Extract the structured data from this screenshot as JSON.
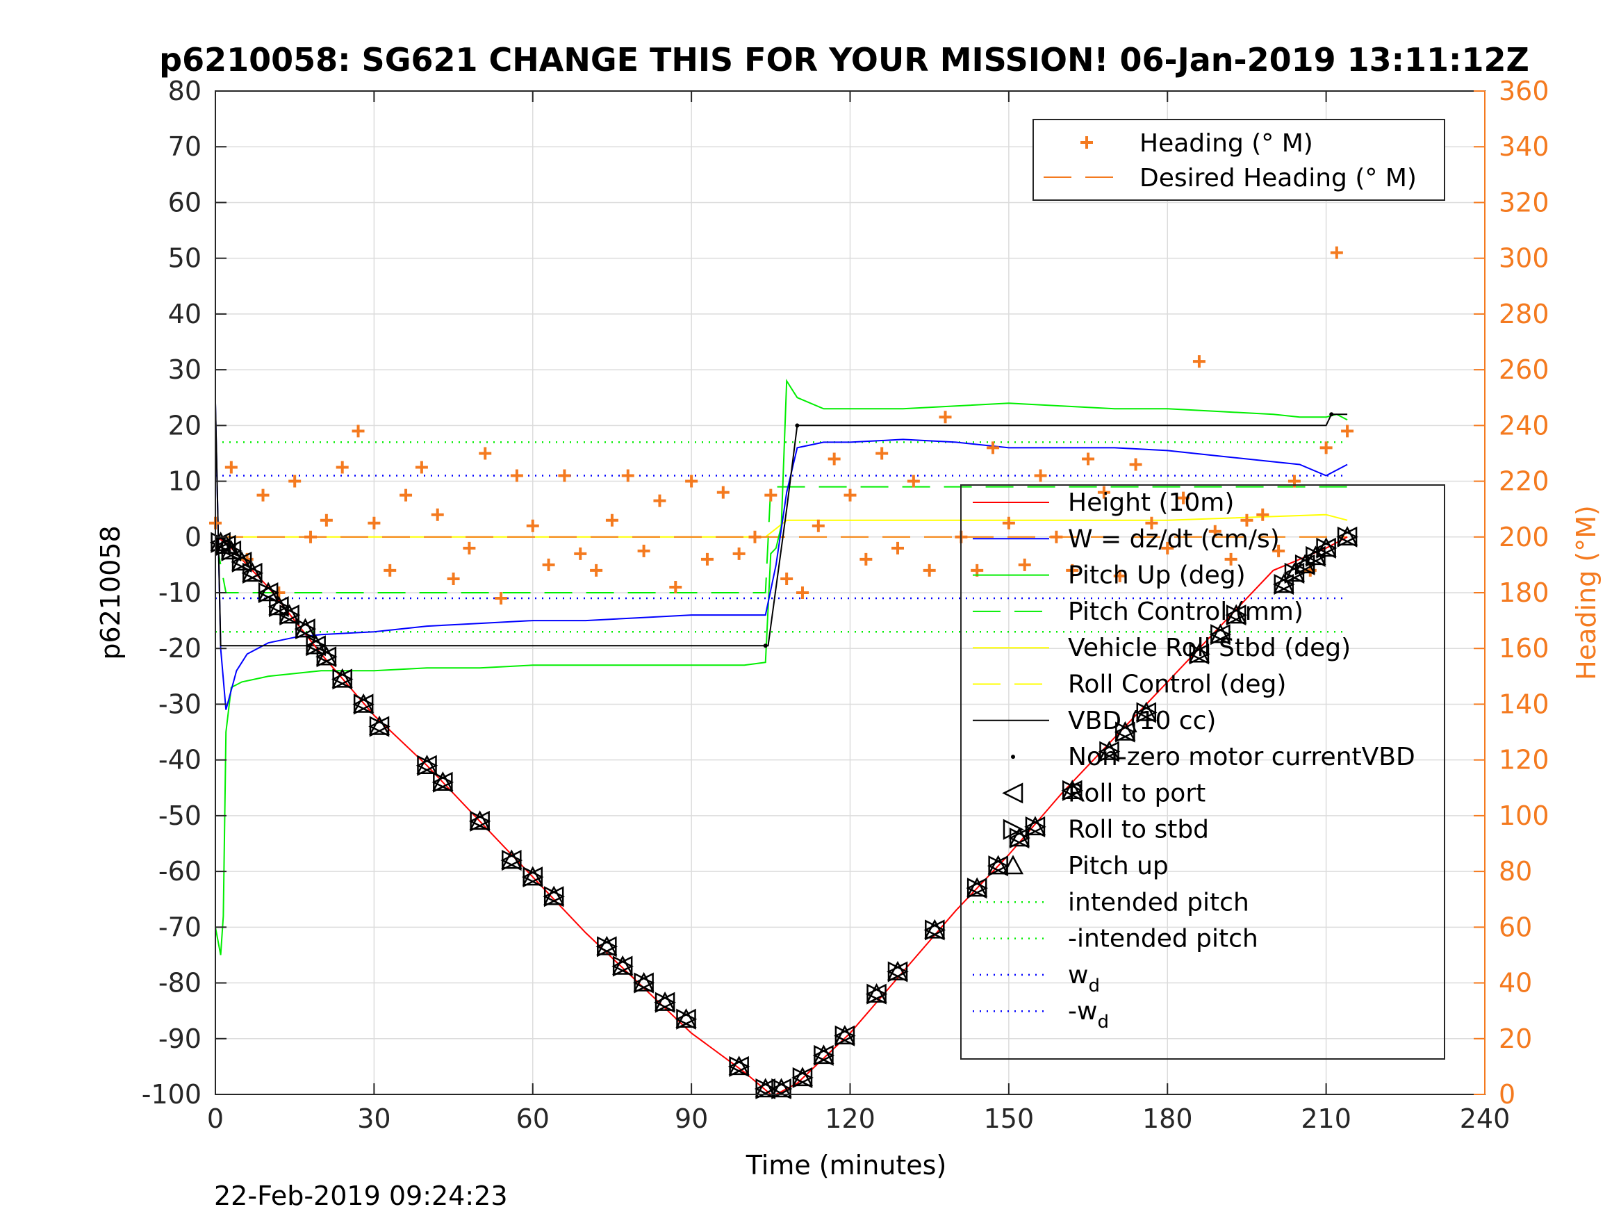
{
  "chart_data": {
    "type": "line",
    "title": "p6210058: SG621 CHANGE THIS FOR YOUR MISSION! 06-Jan-2019 13:11:12Z",
    "xlabel": "Time (minutes)",
    "ylabel": "p6210058",
    "y2label": "Heading (°M)",
    "footer": "22-Feb-2019 09:24:23",
    "xlim": [
      0,
      240
    ],
    "ylim": [
      -100,
      80
    ],
    "y2lim": [
      0,
      360
    ],
    "x_ticks": [
      "0",
      "30",
      "60",
      "90",
      "120",
      "150",
      "180",
      "210",
      "240"
    ],
    "y_ticks": [
      "80",
      "70",
      "60",
      "50",
      "40",
      "30",
      "20",
      "10",
      "0",
      "-10",
      "-20",
      "-30",
      "-40",
      "-50",
      "-60",
      "-70",
      "-80",
      "-90",
      "-100"
    ],
    "y2_ticks": [
      "360",
      "340",
      "320",
      "300",
      "280",
      "260",
      "240",
      "220",
      "200",
      "180",
      "160",
      "140",
      "120",
      "100",
      "80",
      "60",
      "40",
      "20",
      "0"
    ],
    "grid": true,
    "colors": {
      "heading": "#f47a1f",
      "height": "#ff0000",
      "w": "#0000ff",
      "pitch": "#00ee00",
      "roll": "#ffff00",
      "vbd": "#000000"
    },
    "legend_heading": {
      "placement": "top-right",
      "entries": [
        "Heading (° M)",
        "Desired Heading (° M)"
      ]
    },
    "legend_main": {
      "placement": "right",
      "entries": [
        "Height (10m)",
        "W = dz/dt (cm/s)",
        "Pitch Up (deg)",
        "Pitch Control (mm)",
        "Vehicle Roll Stbd (deg)",
        "Roll Control (deg)",
        "VBD (10 cc)",
        "Non-zero motor currentVBD",
        "Roll to port",
        "Roll to stbd",
        "Pitch up",
        "intended pitch",
        "-intended pitch",
        "w",
        "-w"
      ],
      "subscript": "d"
    },
    "series": [
      {
        "name": "Height (10m)",
        "x": [
          0,
          2,
          5,
          10,
          20,
          30,
          40,
          50,
          60,
          70,
          80,
          90,
          100,
          105,
          106,
          108,
          110,
          120,
          130,
          140,
          150,
          160,
          170,
          180,
          190,
          200,
          205,
          210,
          214
        ],
        "y": [
          0,
          -1,
          -4,
          -9,
          -21,
          -32,
          -41,
          -51,
          -61,
          -71,
          -80,
          -89,
          -96,
          -100,
          -100,
          -99,
          -98,
          -89,
          -78,
          -67,
          -57,
          -46,
          -36,
          -26,
          -16,
          -6,
          -4,
          -2,
          0
        ]
      },
      {
        "name": "W = dz/dt (cm/s)",
        "x": [
          0,
          1,
          2,
          4,
          6,
          10,
          15,
          20,
          30,
          40,
          50,
          60,
          70,
          80,
          90,
          100,
          104,
          106,
          108,
          110,
          115,
          120,
          130,
          140,
          150,
          160,
          170,
          180,
          190,
          200,
          205,
          210,
          214
        ],
        "y": [
          24,
          -20,
          -31,
          -24,
          -21,
          -19,
          -18,
          -17.5,
          -17,
          -16,
          -15.5,
          -15,
          -15,
          -14.5,
          -14,
          -14,
          -14,
          -5,
          8,
          16,
          17,
          17,
          17.5,
          17,
          16,
          16,
          16,
          15.5,
          14.5,
          13.5,
          13,
          11,
          13
        ]
      },
      {
        "name": "Pitch Up (deg)",
        "x": [
          0,
          1,
          1.5,
          2,
          3,
          5,
          10,
          20,
          30,
          40,
          50,
          60,
          70,
          80,
          90,
          100,
          104,
          105,
          106,
          107,
          108,
          110,
          115,
          120,
          130,
          140,
          150,
          160,
          170,
          180,
          190,
          200,
          205,
          210,
          212,
          214
        ],
        "y": [
          -70,
          -75,
          -68,
          -35,
          -27,
          -26,
          -25,
          -24,
          -24,
          -23.5,
          -23.5,
          -23,
          -23,
          -23,
          -23,
          -23,
          -22.5,
          -3,
          -2,
          2,
          28,
          25,
          23,
          23,
          23,
          23.5,
          24,
          23.5,
          23,
          23,
          22.5,
          22,
          21.5,
          21.5,
          22,
          21
        ]
      },
      {
        "name": "Pitch Control (mm)",
        "x": [
          0,
          2,
          5,
          104,
          105,
          110,
          214
        ],
        "y": [
          0,
          -10,
          -10,
          -10,
          9,
          9,
          9
        ]
      },
      {
        "name": "Vehicle Roll Stbd (deg)",
        "x": [
          0,
          10,
          20,
          40,
          60,
          80,
          100,
          104,
          108,
          120,
          150,
          180,
          210,
          214
        ],
        "y": [
          0,
          0,
          0,
          0,
          0,
          0,
          0,
          0,
          3,
          3,
          3,
          3,
          4,
          3
        ]
      },
      {
        "name": "Roll Control (deg)",
        "x": [
          0,
          214
        ],
        "y": [
          0,
          0
        ]
      },
      {
        "name": "VBD (10 cc)",
        "x": [
          0,
          1,
          2,
          104,
          104.5,
          108,
          110,
          210,
          211,
          214
        ],
        "y": [
          24,
          -19.5,
          -19.5,
          -19.5,
          -19.5,
          5,
          20,
          20,
          22,
          22
        ]
      },
      {
        "name": "Heading (° M)",
        "x": [
          0,
          3,
          6,
          9,
          12,
          15,
          18,
          21,
          24,
          27,
          30,
          33,
          36,
          39,
          42,
          45,
          48,
          51,
          54,
          57,
          60,
          63,
          66,
          69,
          72,
          75,
          78,
          81,
          84,
          87,
          90,
          93,
          96,
          99,
          102,
          105,
          108,
          111,
          114,
          117,
          120,
          123,
          126,
          129,
          132,
          135,
          138,
          141,
          144,
          147,
          150,
          153,
          156,
          159,
          162,
          165,
          168,
          171,
          174,
          177,
          180,
          183,
          186,
          189,
          192,
          195,
          198,
          201,
          204,
          207,
          210,
          212,
          214
        ],
        "y": [
          205,
          225,
          192,
          215,
          180,
          220,
          200,
          206,
          225,
          238,
          205,
          188,
          215,
          225,
          208,
          185,
          196,
          230,
          178,
          222,
          204,
          190,
          222,
          194,
          188,
          206,
          222,
          195,
          213,
          182,
          220,
          192,
          216,
          194,
          200,
          215,
          185,
          180,
          204,
          228,
          215,
          192,
          230,
          196,
          220,
          188,
          243,
          200,
          188,
          232,
          205,
          190,
          222,
          200,
          188,
          228,
          216,
          186,
          226,
          205,
          196,
          214,
          263,
          202,
          192,
          206,
          208,
          195,
          220,
          188,
          232,
          302,
          238
        ]
      },
      {
        "name": "Desired Heading (° M)",
        "x": [
          0,
          214
        ],
        "y": [
          200,
          200
        ]
      },
      {
        "name": "Non-zero motor currentVBD",
        "x": [
          104,
          110,
          211
        ],
        "y": [
          -19.5,
          20,
          22
        ]
      },
      {
        "name": "intended pitch",
        "x": [
          0,
          214
        ],
        "y": [
          17,
          17
        ]
      },
      {
        "name": "-intended pitch",
        "x": [
          0,
          214
        ],
        "y": [
          -17,
          -17
        ]
      },
      {
        "name": "w",
        "x": [
          0,
          214
        ],
        "y": [
          11,
          11
        ]
      },
      {
        "name": "-w",
        "x": [
          0,
          214
        ],
        "y": [
          -11,
          -11
        ]
      },
      {
        "name": "Roll to port",
        "x": [
          1,
          2,
          3,
          5,
          7,
          10,
          12,
          14,
          17,
          19,
          21,
          24,
          28,
          31,
          40,
          43,
          50,
          56,
          60,
          64,
          74,
          77,
          81,
          85,
          89,
          99,
          104,
          107,
          111,
          115,
          119,
          125,
          129,
          136,
          144,
          148,
          152,
          155,
          162,
          169,
          172,
          176,
          186,
          190,
          193,
          202,
          204,
          206,
          208,
          210,
          214
        ],
        "y": [
          -1,
          -1.5,
          -2.5,
          -4.5,
          -6.5,
          -10,
          -12.5,
          -14,
          -16.5,
          -19.5,
          -21.5,
          -25.5,
          -30,
          -34,
          -41,
          -44,
          -51,
          -58,
          -61,
          -64.5,
          -73.5,
          -77,
          -80,
          -83.5,
          -86.5,
          -95,
          -99,
          -99,
          -97,
          -93,
          -89.5,
          -82,
          -78,
          -70.5,
          -63,
          -59,
          -54,
          -52,
          -45.5,
          -38.5,
          -35,
          -31.5,
          -21,
          -17.5,
          -14,
          -8.5,
          -6.5,
          -5,
          -3.5,
          -2,
          0
        ]
      },
      {
        "name": "Roll to stbd",
        "x": [
          1,
          2,
          3,
          5,
          7,
          10,
          12,
          14,
          17,
          19,
          21,
          24,
          28,
          31,
          40,
          43,
          50,
          56,
          60,
          64,
          74,
          77,
          81,
          85,
          89,
          99,
          104,
          107,
          111,
          115,
          119,
          125,
          129,
          136,
          144,
          148,
          152,
          155,
          162,
          169,
          172,
          176,
          186,
          190,
          193,
          202,
          204,
          206,
          208,
          210,
          214
        ],
        "y": [
          -1,
          -1.5,
          -2.5,
          -4.5,
          -6.5,
          -10,
          -12.5,
          -14,
          -16.5,
          -19.5,
          -21.5,
          -25.5,
          -30,
          -34,
          -41,
          -44,
          -51,
          -58,
          -61,
          -64.5,
          -73.5,
          -77,
          -80,
          -83.5,
          -86.5,
          -95,
          -99,
          -99,
          -97,
          -93,
          -89.5,
          -82,
          -78,
          -70.5,
          -63,
          -59,
          -54,
          -52,
          -45.5,
          -38.5,
          -35,
          -31.5,
          -21,
          -17.5,
          -14,
          -8.5,
          -6.5,
          -5,
          -3.5,
          -2,
          0
        ]
      },
      {
        "name": "Pitch up",
        "x": [
          1,
          2,
          3,
          5,
          7,
          10,
          12,
          14,
          17,
          19,
          21,
          24,
          28,
          31,
          40,
          43,
          50,
          56,
          60,
          64,
          74,
          77,
          81,
          85,
          89,
          99,
          104,
          107,
          111,
          115,
          119,
          125,
          129,
          136,
          144,
          148,
          152,
          155,
          162,
          169,
          172,
          176,
          186,
          190,
          193,
          202,
          204,
          206,
          208,
          210,
          214
        ],
        "y": [
          -1,
          -1.5,
          -2.5,
          -4.5,
          -6.5,
          -10,
          -12.5,
          -14,
          -16.5,
          -19.5,
          -21.5,
          -25.5,
          -30,
          -34,
          -41,
          -44,
          -51,
          -58,
          -61,
          -64.5,
          -73.5,
          -77,
          -80,
          -83.5,
          -86.5,
          -95,
          -99,
          -99,
          -97,
          -93,
          -89.5,
          -82,
          -78,
          -70.5,
          -63,
          -59,
          -54,
          -52,
          -45.5,
          -38.5,
          -35,
          -31.5,
          -21,
          -17.5,
          -14,
          -8.5,
          -6.5,
          -5,
          -3.5,
          -2,
          0
        ]
      }
    ]
  }
}
